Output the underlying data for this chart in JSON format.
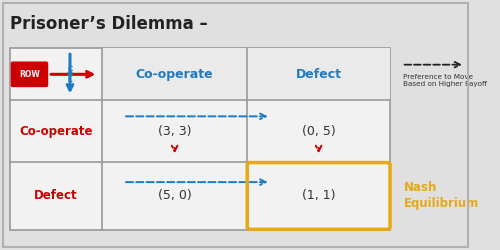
{
  "title": "Prisoner’s Dilemma –",
  "bg_color": "#e0e0e0",
  "table_bg": "#f0f0f0",
  "table_border": "#999999",
  "col_headers": [
    "Co-operate",
    "Defect"
  ],
  "row_headers": [
    "Co-operate",
    "Defect"
  ],
  "cells": [
    [
      "(3, 3)",
      "(0, 5)"
    ],
    [
      "(5, 0)",
      "(1, 1)"
    ]
  ],
  "header_color": "#1f7bbf",
  "row_header_color": "#cc0000",
  "nash_box_color": "#e6a817",
  "nash_label": "Nash\nEquilibrium",
  "nash_label_color": "#e6a817",
  "arrow_blue": "#1f7bbf",
  "arrow_red": "#cc0000",
  "dashed_arrow_note": "Preference to Move\nBased on Higher Payoff",
  "note_color": "#333333"
}
